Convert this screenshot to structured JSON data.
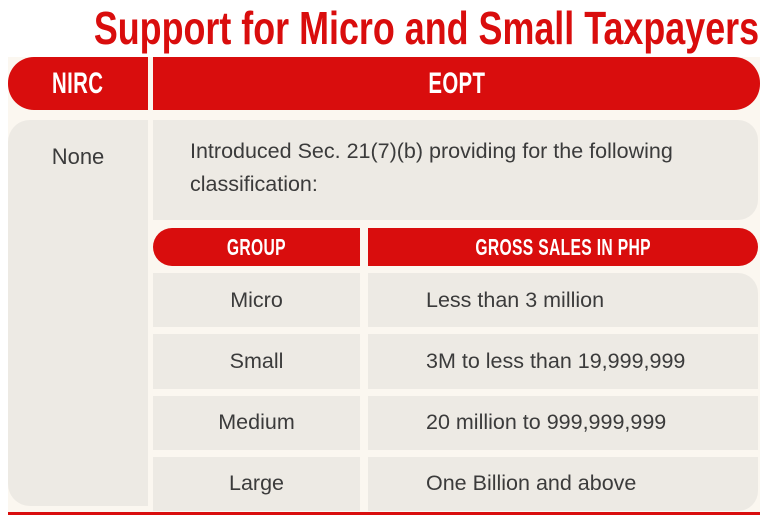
{
  "title": "Support for Micro and Small Taxpayers",
  "colors": {
    "accent_red": "#D90D0D",
    "panel_gray": "#EDEAE4",
    "text_dark": "#3B3B3B",
    "header_text": "#FFFFFF",
    "gap_cream": "#FBF7F0"
  },
  "comparison": {
    "left_header": "NIRC",
    "right_header": "EOPT",
    "left_cell": "None",
    "intro_text": "Introduced Sec. 21(7)(b) providing for the following classification:"
  },
  "inner_table": {
    "headers": {
      "group": "GROUP",
      "gross_sales": "GROSS SALES IN PHP"
    },
    "rows": [
      {
        "group": "Micro",
        "gross_sales": "Less than 3 million"
      },
      {
        "group": "Small",
        "gross_sales": "3M to less than 19,999,999"
      },
      {
        "group": "Medium",
        "gross_sales": "20 million to 999,999,999"
      },
      {
        "group": "Large",
        "gross_sales": "One Billion and above"
      }
    ]
  }
}
